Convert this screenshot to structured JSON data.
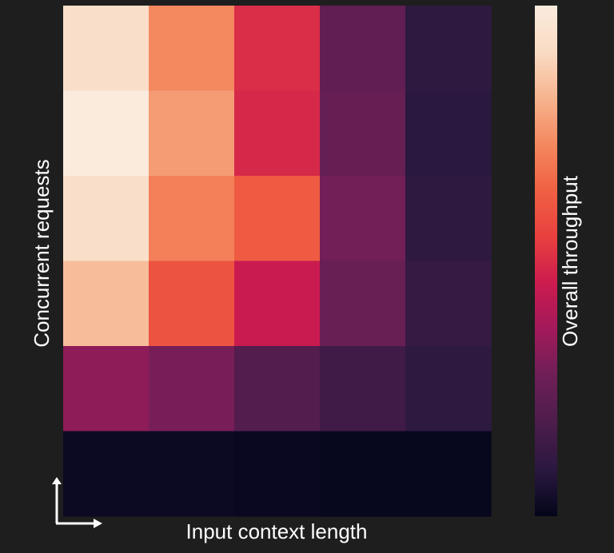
{
  "chart_data": {
    "type": "heatmap",
    "title": "",
    "xlabel": "Input context length",
    "ylabel": "Concurrent requests",
    "colorbar_label": "Overall throughput",
    "x_categories": [],
    "y_categories": [],
    "value_range": [
      0,
      1
    ],
    "values": [
      [
        0.93,
        0.73,
        0.5,
        0.24,
        0.1
      ],
      [
        1.0,
        0.77,
        0.49,
        0.25,
        0.09
      ],
      [
        0.93,
        0.71,
        0.62,
        0.28,
        0.1
      ],
      [
        0.84,
        0.6,
        0.45,
        0.26,
        0.12
      ],
      [
        0.33,
        0.29,
        0.2,
        0.15,
        0.1
      ],
      [
        0.02,
        0.02,
        0.015,
        0.01,
        0.01
      ]
    ],
    "colormap": "rocket",
    "colormap_stops": [
      "#03051a",
      "#2b1840",
      "#4c1d4b",
      "#6d1f56",
      "#a11a5b",
      "#cb1b4f",
      "#e83f3f",
      "#f06043",
      "#f4875e",
      "#f6b48e",
      "#f9dbc4",
      "#faebdd"
    ],
    "axis_color": "#ffffff",
    "background": "#1e1e1e"
  }
}
